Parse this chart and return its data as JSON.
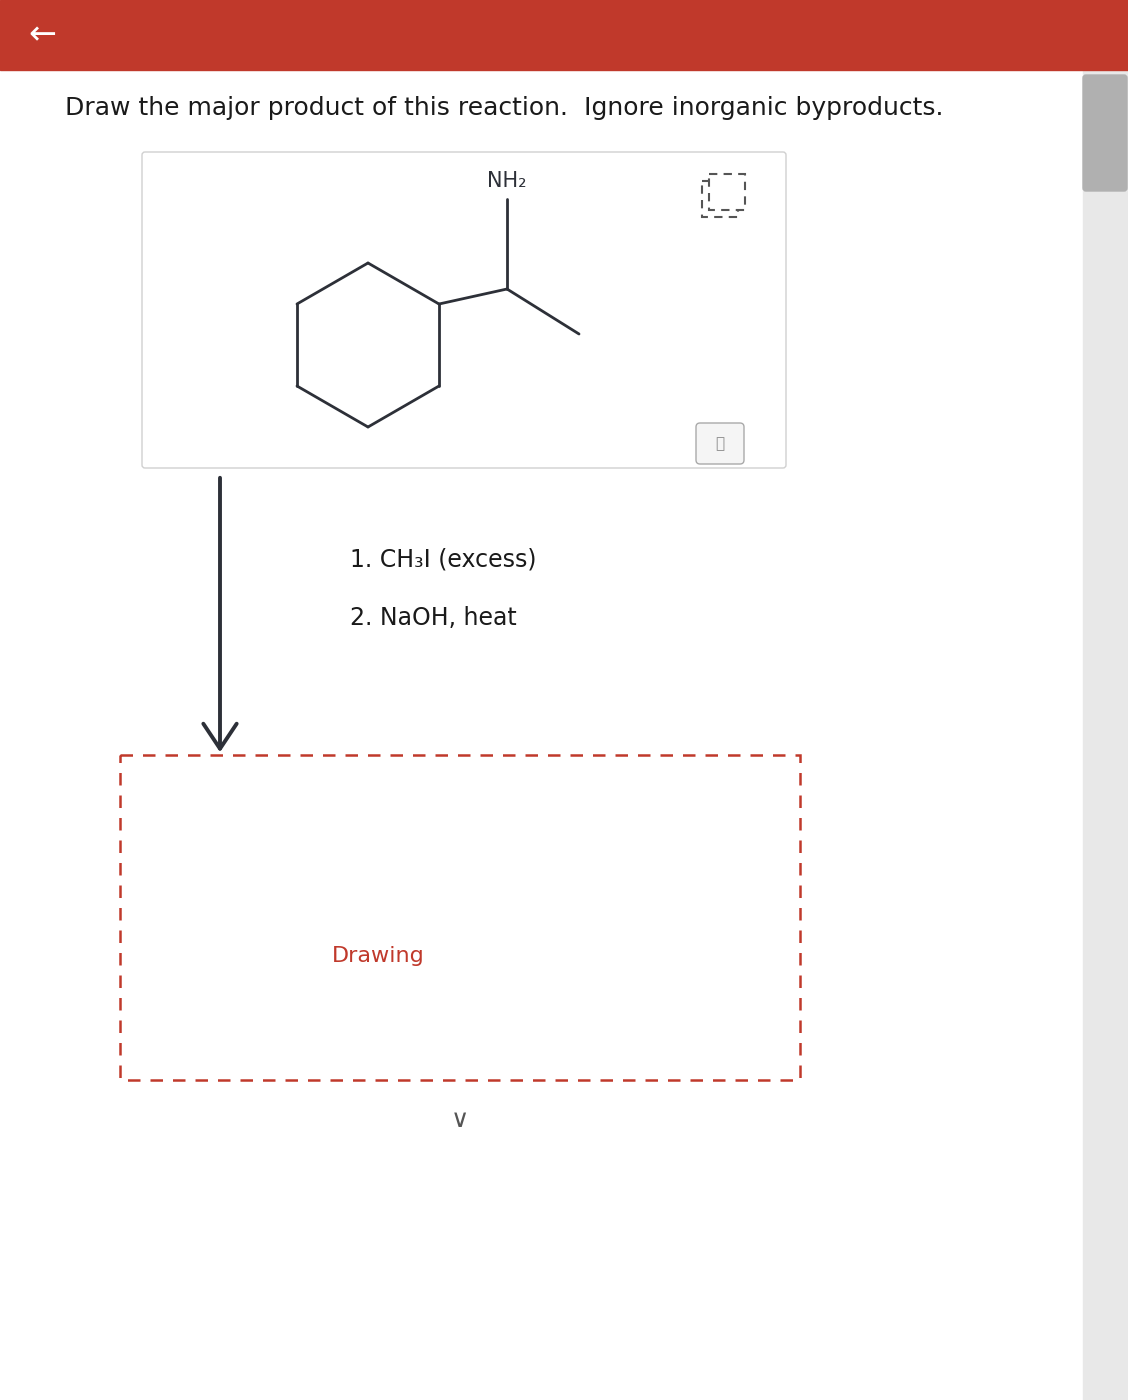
{
  "header_color": "#C0392B",
  "back_arrow": "←",
  "title": "Draw the major product of this reaction.  Ignore inorganic byproducts.",
  "title_fontsize": 18,
  "bond_color": "#2d3038",
  "bond_lw": 2.0,
  "nh2_label": "NH₂",
  "reaction_step1": "1. CH₃I (excess)",
  "reaction_step2": "2. NaOH, heat",
  "drawing_label": "Drawing",
  "drawing_label_color": "#C0392B",
  "mol_box_border": "#d0d0d0",
  "scrollbar_gray": "#d0d0d0"
}
